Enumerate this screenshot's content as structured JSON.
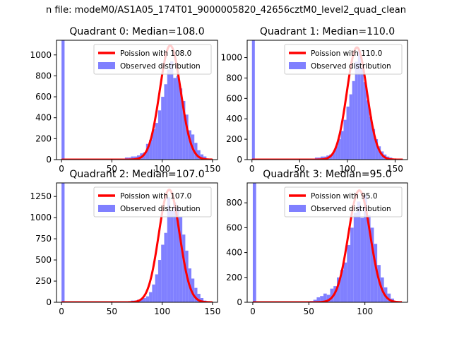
{
  "figure": {
    "suptitle": "n file: modeM0/AS1A05_174T01_9000005820_42656cztM0_level2_quad_clean"
  },
  "chart_data": [
    {
      "type": "bar",
      "title": "Quadrant 0: Median=108.0",
      "xlim": [
        -5,
        155
      ],
      "ylim": [
        0,
        1140
      ],
      "xticks": [
        0,
        50,
        100,
        150
      ],
      "yticks": [
        0,
        200,
        400,
        600,
        800,
        1000
      ],
      "colors": {
        "hist": "#8080ff",
        "fit": "#ff0000"
      },
      "legend": {
        "placement": "top-right",
        "entries": [
          "Poission with 108.0",
          "Observed distribution"
        ]
      },
      "fit": {
        "name": "Poission with 108.0",
        "mean": 108.0,
        "peak": 1090
      },
      "hist": {
        "name": "Observed distribution",
        "bin_width": 3,
        "bins": [
          {
            "x": 0,
            "value": 1140
          },
          {
            "x": 60,
            "value": 10
          },
          {
            "x": 63,
            "value": 20
          },
          {
            "x": 66,
            "value": 20
          },
          {
            "x": 69,
            "value": 30
          },
          {
            "x": 72,
            "value": 30
          },
          {
            "x": 75,
            "value": 40
          },
          {
            "x": 78,
            "value": 60
          },
          {
            "x": 81,
            "value": 70
          },
          {
            "x": 84,
            "value": 150
          },
          {
            "x": 87,
            "value": 190
          },
          {
            "x": 90,
            "value": 290
          },
          {
            "x": 93,
            "value": 350
          },
          {
            "x": 96,
            "value": 470
          },
          {
            "x": 99,
            "value": 600
          },
          {
            "x": 102,
            "value": 720
          },
          {
            "x": 105,
            "value": 860
          },
          {
            "x": 108,
            "value": 940
          },
          {
            "x": 111,
            "value": 780
          },
          {
            "x": 114,
            "value": 800
          },
          {
            "x": 117,
            "value": 680
          },
          {
            "x": 120,
            "value": 560
          },
          {
            "x": 123,
            "value": 430
          },
          {
            "x": 126,
            "value": 280
          },
          {
            "x": 129,
            "value": 240
          },
          {
            "x": 132,
            "value": 160
          },
          {
            "x": 135,
            "value": 90
          },
          {
            "x": 138,
            "value": 50
          },
          {
            "x": 141,
            "value": 30
          },
          {
            "x": 144,
            "value": 10
          }
        ]
      }
    },
    {
      "type": "bar",
      "title": "Quadrant 1: Median=110.0",
      "xlim": [
        -5,
        163
      ],
      "ylim": [
        0,
        1170
      ],
      "xticks": [
        0,
        50,
        100,
        150
      ],
      "yticks": [
        0,
        200,
        400,
        600,
        800,
        1000
      ],
      "colors": {
        "hist": "#8080ff",
        "fit": "#ff0000"
      },
      "legend": {
        "placement": "top-right",
        "entries": [
          "Poission with 110.0",
          "Observed distribution"
        ]
      },
      "fit": {
        "name": "Poission with 110.0",
        "mean": 110.0,
        "peak": 1100
      },
      "hist": {
        "name": "Observed distribution",
        "bin_width": 3,
        "bins": [
          {
            "x": 0,
            "value": 1170
          },
          {
            "x": 60,
            "value": 10
          },
          {
            "x": 63,
            "value": 10
          },
          {
            "x": 66,
            "value": 20
          },
          {
            "x": 69,
            "value": 20
          },
          {
            "x": 72,
            "value": 30
          },
          {
            "x": 75,
            "value": 30
          },
          {
            "x": 78,
            "value": 40
          },
          {
            "x": 81,
            "value": 50
          },
          {
            "x": 84,
            "value": 70
          },
          {
            "x": 87,
            "value": 130
          },
          {
            "x": 90,
            "value": 200
          },
          {
            "x": 93,
            "value": 280
          },
          {
            "x": 96,
            "value": 390
          },
          {
            "x": 99,
            "value": 520
          },
          {
            "x": 102,
            "value": 640
          },
          {
            "x": 105,
            "value": 770
          },
          {
            "x": 108,
            "value": 960
          },
          {
            "x": 111,
            "value": 1070
          },
          {
            "x": 114,
            "value": 900
          },
          {
            "x": 117,
            "value": 760
          },
          {
            "x": 120,
            "value": 580
          },
          {
            "x": 123,
            "value": 420
          },
          {
            "x": 126,
            "value": 300
          },
          {
            "x": 129,
            "value": 200
          },
          {
            "x": 132,
            "value": 130
          },
          {
            "x": 135,
            "value": 80
          },
          {
            "x": 138,
            "value": 50
          },
          {
            "x": 141,
            "value": 30
          },
          {
            "x": 144,
            "value": 20
          },
          {
            "x": 147,
            "value": 10
          }
        ]
      }
    },
    {
      "type": "bar",
      "title": "Quadrant 2: Median=107.0",
      "xlim": [
        -5,
        155
      ],
      "ylim": [
        0,
        1410
      ],
      "xticks": [
        0,
        50,
        100,
        150
      ],
      "yticks": [
        0,
        250,
        500,
        750,
        1000,
        1250
      ],
      "colors": {
        "hist": "#8080ff",
        "fit": "#ff0000"
      },
      "legend": {
        "placement": "top-right",
        "entries": [
          "Poission with 107.0",
          "Observed distribution"
        ]
      },
      "fit": {
        "name": "Poission with 107.0",
        "mean": 107.0,
        "peak": 1330
      },
      "hist": {
        "name": "Observed distribution",
        "bin_width": 3,
        "bins": [
          {
            "x": 0,
            "value": 1410
          },
          {
            "x": 63,
            "value": 10
          },
          {
            "x": 66,
            "value": 10
          },
          {
            "x": 69,
            "value": 20
          },
          {
            "x": 72,
            "value": 20
          },
          {
            "x": 75,
            "value": 30
          },
          {
            "x": 78,
            "value": 40
          },
          {
            "x": 81,
            "value": 50
          },
          {
            "x": 84,
            "value": 70
          },
          {
            "x": 87,
            "value": 120
          },
          {
            "x": 90,
            "value": 210
          },
          {
            "x": 93,
            "value": 330
          },
          {
            "x": 96,
            "value": 500
          },
          {
            "x": 99,
            "value": 680
          },
          {
            "x": 102,
            "value": 820
          },
          {
            "x": 105,
            "value": 1240
          },
          {
            "x": 108,
            "value": 1080
          },
          {
            "x": 111,
            "value": 1180
          },
          {
            "x": 114,
            "value": 1120
          },
          {
            "x": 117,
            "value": 1010
          },
          {
            "x": 120,
            "value": 800
          },
          {
            "x": 123,
            "value": 610
          },
          {
            "x": 126,
            "value": 400
          },
          {
            "x": 129,
            "value": 280
          },
          {
            "x": 132,
            "value": 170
          },
          {
            "x": 135,
            "value": 100
          },
          {
            "x": 138,
            "value": 50
          },
          {
            "x": 141,
            "value": 20
          },
          {
            "x": 144,
            "value": 10
          }
        ]
      }
    },
    {
      "type": "bar",
      "title": "Quadrant 3: Median=95.0",
      "xlim": [
        -5,
        138
      ],
      "ylim": [
        0,
        960
      ],
      "xticks": [
        0,
        50,
        100
      ],
      "yticks": [
        0,
        200,
        400,
        600,
        800
      ],
      "colors": {
        "hist": "#8080ff",
        "fit": "#ff0000"
      },
      "legend": {
        "placement": "top-right",
        "entries": [
          "Poission with 95.0",
          "Observed distribution"
        ]
      },
      "fit": {
        "name": "Poission with 95.0",
        "mean": 95.0,
        "peak": 900
      },
      "hist": {
        "name": "Observed distribution",
        "bin_width": 3,
        "bins": [
          {
            "x": 0,
            "value": 960
          },
          {
            "x": 51,
            "value": 10
          },
          {
            "x": 54,
            "value": 20
          },
          {
            "x": 57,
            "value": 40
          },
          {
            "x": 60,
            "value": 50
          },
          {
            "x": 63,
            "value": 70
          },
          {
            "x": 66,
            "value": 60
          },
          {
            "x": 69,
            "value": 110
          },
          {
            "x": 72,
            "value": 130
          },
          {
            "x": 75,
            "value": 200
          },
          {
            "x": 78,
            "value": 260
          },
          {
            "x": 81,
            "value": 320
          },
          {
            "x": 84,
            "value": 460
          },
          {
            "x": 87,
            "value": 600
          },
          {
            "x": 90,
            "value": 720
          },
          {
            "x": 93,
            "value": 810
          },
          {
            "x": 96,
            "value": 680
          },
          {
            "x": 99,
            "value": 860
          },
          {
            "x": 102,
            "value": 700
          },
          {
            "x": 105,
            "value": 600
          },
          {
            "x": 108,
            "value": 470
          },
          {
            "x": 111,
            "value": 300
          },
          {
            "x": 114,
            "value": 200
          },
          {
            "x": 117,
            "value": 120
          },
          {
            "x": 120,
            "value": 70
          },
          {
            "x": 123,
            "value": 30
          },
          {
            "x": 126,
            "value": 10
          }
        ]
      }
    }
  ]
}
